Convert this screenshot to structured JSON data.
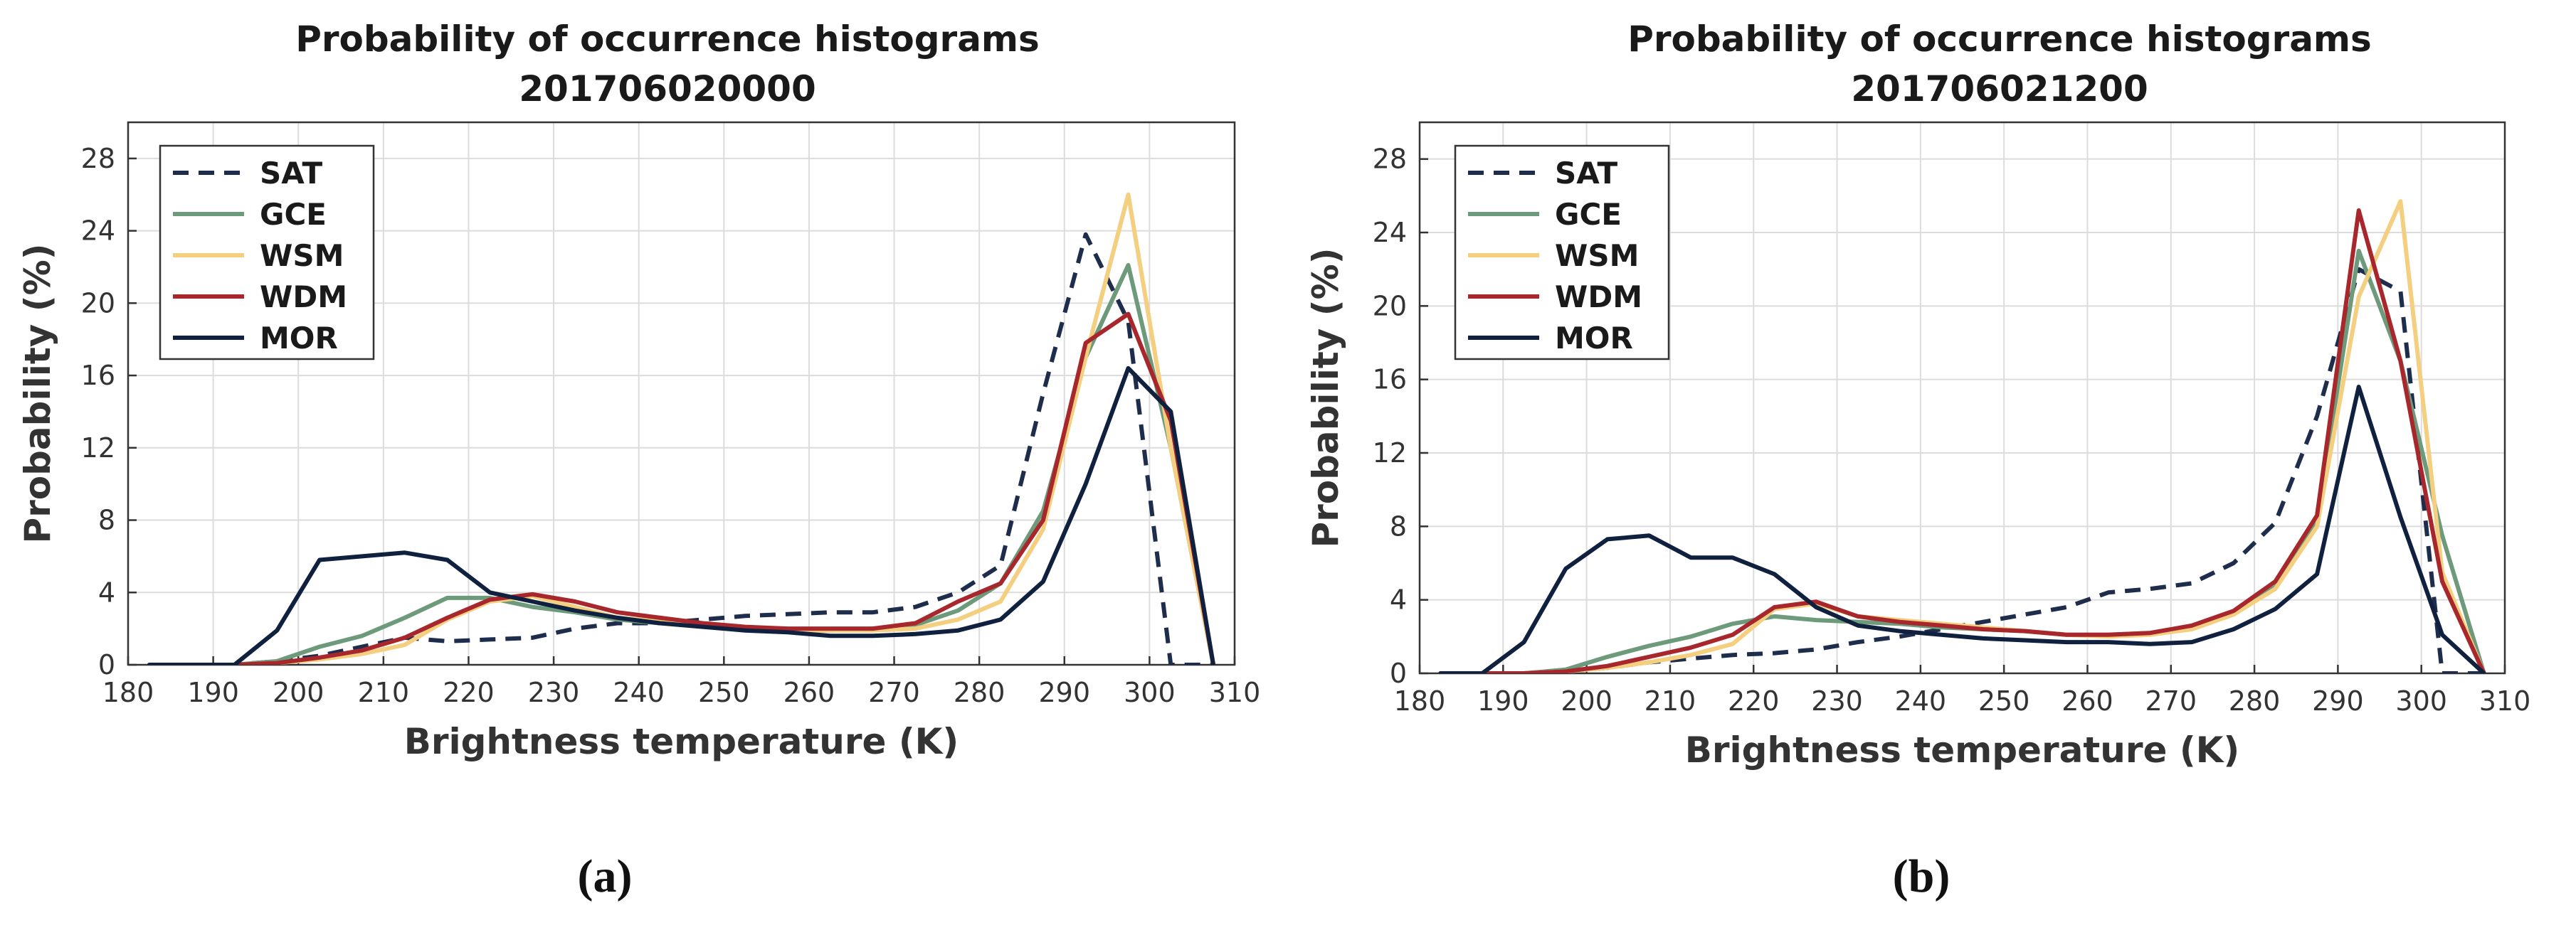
{
  "figure": {
    "captions": [
      "(a)",
      "(b)"
    ]
  },
  "chart_data": [
    {
      "type": "line",
      "title": "Probability of occurrence histograms",
      "subtitle": "201706020000",
      "xlabel": "Brightness temperature (K)",
      "ylabel": "Probability (%)",
      "xlim": [
        180,
        310
      ],
      "ylim": [
        0,
        30
      ],
      "xticks": [
        180,
        190,
        200,
        210,
        220,
        230,
        240,
        250,
        260,
        270,
        280,
        290,
        300,
        310
      ],
      "yticks": [
        0,
        4,
        8,
        12,
        16,
        20,
        24,
        28
      ],
      "grid": true,
      "legend_position": "top-left",
      "x": [
        182.5,
        187.5,
        192.5,
        197.5,
        202.5,
        207.5,
        212.5,
        217.5,
        222.5,
        227.5,
        232.5,
        237.5,
        242.5,
        247.5,
        252.5,
        257.5,
        262.5,
        267.5,
        272.5,
        277.5,
        282.5,
        287.5,
        292.5,
        297.5,
        302.5,
        307.5
      ],
      "series": [
        {
          "name": "SAT",
          "color": "#1f2d4d",
          "dash": true,
          "values": [
            0,
            0,
            0,
            0.2,
            0.5,
            1.0,
            1.5,
            1.3,
            1.4,
            1.5,
            2.0,
            2.3,
            2.3,
            2.5,
            2.7,
            2.8,
            2.9,
            2.9,
            3.2,
            4.0,
            5.5,
            15.0,
            23.8,
            19.0,
            0,
            0
          ]
        },
        {
          "name": "GCE",
          "color": "#6e9a7c",
          "dash": false,
          "values": [
            0,
            0,
            0,
            0.2,
            1.0,
            1.6,
            2.6,
            3.7,
            3.7,
            3.2,
            2.9,
            2.5,
            2.3,
            2.2,
            2.0,
            1.9,
            1.9,
            2.0,
            2.2,
            3.0,
            4.5,
            8.5,
            17.0,
            22.1,
            12.0,
            0
          ]
        },
        {
          "name": "WSM",
          "color": "#f4cf80",
          "dash": false,
          "values": [
            0,
            0,
            0,
            0.1,
            0.3,
            0.6,
            1.1,
            2.5,
            3.5,
            3.8,
            3.2,
            2.6,
            2.4,
            2.2,
            2.0,
            1.9,
            1.9,
            1.9,
            2.0,
            2.5,
            3.5,
            7.5,
            17.0,
            26.0,
            12.0,
            0
          ]
        },
        {
          "name": "WDM",
          "color": "#a8272c",
          "dash": false,
          "values": [
            0,
            0,
            0,
            0.1,
            0.4,
            0.8,
            1.5,
            2.6,
            3.6,
            3.9,
            3.5,
            2.9,
            2.6,
            2.3,
            2.1,
            2.0,
            2.0,
            2.0,
            2.3,
            3.5,
            4.5,
            8.0,
            17.8,
            19.4,
            13.5,
            0
          ]
        },
        {
          "name": "MOR",
          "color": "#10213f",
          "dash": false,
          "values": [
            0,
            0,
            0,
            1.9,
            5.8,
            6.0,
            6.2,
            5.8,
            4.0,
            3.5,
            3.0,
            2.6,
            2.3,
            2.1,
            1.9,
            1.8,
            1.6,
            1.6,
            1.7,
            1.9,
            2.5,
            4.6,
            10.0,
            16.4,
            14.0,
            0
          ]
        }
      ]
    },
    {
      "type": "line",
      "title": "Probability of occurrence histograms",
      "subtitle": "201706021200",
      "xlabel": "Brightness temperature (K)",
      "ylabel": "Probability (%)",
      "xlim": [
        180,
        310
      ],
      "ylim": [
        0,
        30
      ],
      "xticks": [
        180,
        190,
        200,
        210,
        220,
        230,
        240,
        250,
        260,
        270,
        280,
        290,
        300,
        310
      ],
      "yticks": [
        0,
        4,
        8,
        12,
        16,
        20,
        24,
        28
      ],
      "grid": true,
      "legend_position": "top-left",
      "x": [
        182.5,
        187.5,
        192.5,
        197.5,
        202.5,
        207.5,
        212.5,
        217.5,
        222.5,
        227.5,
        232.5,
        237.5,
        242.5,
        247.5,
        252.5,
        257.5,
        262.5,
        267.5,
        272.5,
        277.5,
        282.5,
        287.5,
        292.5,
        297.5,
        302.5,
        307.5
      ],
      "series": [
        {
          "name": "SAT",
          "color": "#1f2d4d",
          "dash": true,
          "values": [
            0,
            0,
            0,
            0.1,
            0.3,
            0.6,
            0.8,
            1.0,
            1.1,
            1.3,
            1.7,
            2.0,
            2.4,
            2.8,
            3.2,
            3.6,
            4.4,
            4.6,
            4.9,
            6.0,
            8.2,
            14.0,
            22.0,
            20.8,
            0,
            0
          ]
        },
        {
          "name": "GCE",
          "color": "#6e9a7c",
          "dash": false,
          "values": [
            0,
            0,
            0,
            0.2,
            0.9,
            1.5,
            2.0,
            2.7,
            3.1,
            2.9,
            2.8,
            2.7,
            2.5,
            2.4,
            2.3,
            2.1,
            2.1,
            2.2,
            2.5,
            3.3,
            4.7,
            8.3,
            23.0,
            17.0,
            7.5,
            0
          ]
        },
        {
          "name": "WSM",
          "color": "#f4cf80",
          "dash": false,
          "values": [
            0,
            0,
            0,
            0.1,
            0.3,
            0.6,
            1.0,
            1.6,
            3.5,
            3.8,
            3.1,
            2.9,
            2.7,
            2.5,
            2.3,
            2.1,
            2.0,
            2.1,
            2.4,
            3.2,
            4.6,
            8.0,
            20.5,
            25.7,
            5.5,
            0
          ]
        },
        {
          "name": "WDM",
          "color": "#a8272c",
          "dash": false,
          "values": [
            0,
            0,
            0,
            0.1,
            0.4,
            0.9,
            1.4,
            2.1,
            3.6,
            3.9,
            3.1,
            2.8,
            2.6,
            2.4,
            2.3,
            2.1,
            2.1,
            2.2,
            2.6,
            3.4,
            5.0,
            8.6,
            25.2,
            17.0,
            5.0,
            0
          ]
        },
        {
          "name": "MOR",
          "color": "#10213f",
          "dash": false,
          "values": [
            0,
            0,
            1.7,
            5.7,
            7.3,
            7.5,
            6.3,
            6.3,
            5.4,
            3.6,
            2.6,
            2.3,
            2.1,
            1.9,
            1.8,
            1.7,
            1.7,
            1.6,
            1.7,
            2.4,
            3.5,
            5.4,
            15.6,
            8.5,
            2.1,
            0
          ]
        }
      ]
    }
  ]
}
